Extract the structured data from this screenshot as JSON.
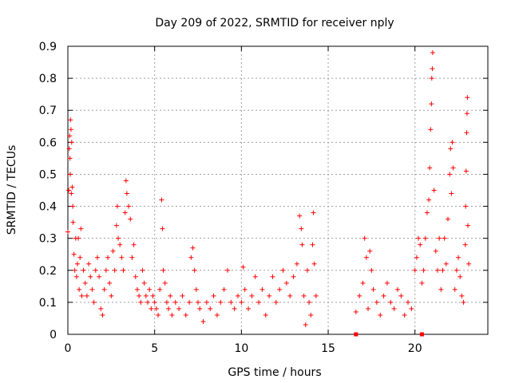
{
  "chart_data": {
    "type": "scatter",
    "title": "Day 209 of 2022, SRMTID for receiver nply",
    "xlabel": "GPS time / hours",
    "ylabel": "SRMTID / TECUs",
    "xlim": [
      0,
      24.2
    ],
    "ylim": [
      0,
      0.9
    ],
    "grid": true,
    "x_ticks": [
      0,
      5,
      10,
      15,
      20
    ],
    "y_ticks": [
      0,
      0.1,
      0.2,
      0.3,
      0.4,
      0.5,
      0.6,
      0.7,
      0.8,
      0.9
    ],
    "marker": "+",
    "marker_color": "#ff0000",
    "series": [
      {
        "name": "SRMTID",
        "points": [
          [
            0.0,
            0.32
          ],
          [
            0.05,
            0.45
          ],
          [
            0.08,
            0.58
          ],
          [
            0.1,
            0.62
          ],
          [
            0.12,
            0.55
          ],
          [
            0.14,
            0.5
          ],
          [
            0.15,
            0.67
          ],
          [
            0.18,
            0.64
          ],
          [
            0.2,
            0.44
          ],
          [
            0.22,
            0.6
          ],
          [
            0.25,
            0.46
          ],
          [
            0.28,
            0.4
          ],
          [
            0.3,
            0.35
          ],
          [
            0.35,
            0.25
          ],
          [
            0.4,
            0.2
          ],
          [
            0.45,
            0.3
          ],
          [
            0.5,
            0.18
          ],
          [
            0.55,
            0.22
          ],
          [
            0.6,
            0.3
          ],
          [
            0.65,
            0.14
          ],
          [
            0.7,
            0.24
          ],
          [
            0.75,
            0.33
          ],
          [
            0.8,
            0.12
          ],
          [
            0.9,
            0.2
          ],
          [
            1.0,
            0.16
          ],
          [
            1.1,
            0.12
          ],
          [
            1.2,
            0.22
          ],
          [
            1.3,
            0.18
          ],
          [
            1.4,
            0.14
          ],
          [
            1.5,
            0.1
          ],
          [
            1.6,
            0.2
          ],
          [
            1.7,
            0.24
          ],
          [
            1.8,
            0.18
          ],
          [
            1.9,
            0.08
          ],
          [
            2.0,
            0.06
          ],
          [
            2.1,
            0.14
          ],
          [
            2.2,
            0.2
          ],
          [
            2.3,
            0.24
          ],
          [
            2.4,
            0.16
          ],
          [
            2.5,
            0.12
          ],
          [
            2.6,
            0.26
          ],
          [
            2.7,
            0.2
          ],
          [
            2.8,
            0.34
          ],
          [
            2.85,
            0.4
          ],
          [
            2.9,
            0.3
          ],
          [
            3.0,
            0.28
          ],
          [
            3.1,
            0.24
          ],
          [
            3.2,
            0.2
          ],
          [
            3.3,
            0.38
          ],
          [
            3.35,
            0.48
          ],
          [
            3.4,
            0.44
          ],
          [
            3.5,
            0.4
          ],
          [
            3.6,
            0.36
          ],
          [
            3.7,
            0.24
          ],
          [
            3.8,
            0.28
          ],
          [
            3.9,
            0.18
          ],
          [
            4.0,
            0.14
          ],
          [
            4.1,
            0.12
          ],
          [
            4.2,
            0.1
          ],
          [
            4.3,
            0.2
          ],
          [
            4.4,
            0.16
          ],
          [
            4.5,
            0.12
          ],
          [
            4.6,
            0.1
          ],
          [
            4.7,
            0.14
          ],
          [
            4.8,
            0.08
          ],
          [
            4.9,
            0.12
          ],
          [
            5.0,
            0.1
          ],
          [
            5.1,
            0.08
          ],
          [
            5.2,
            0.06
          ],
          [
            5.3,
            0.14
          ],
          [
            5.4,
            0.42
          ],
          [
            5.45,
            0.33
          ],
          [
            5.5,
            0.2
          ],
          [
            5.6,
            0.16
          ],
          [
            5.7,
            0.1
          ],
          [
            5.8,
            0.08
          ],
          [
            5.9,
            0.12
          ],
          [
            6.0,
            0.06
          ],
          [
            6.2,
            0.1
          ],
          [
            6.4,
            0.08
          ],
          [
            6.6,
            0.12
          ],
          [
            6.8,
            0.06
          ],
          [
            7.0,
            0.1
          ],
          [
            7.1,
            0.24
          ],
          [
            7.2,
            0.27
          ],
          [
            7.3,
            0.2
          ],
          [
            7.4,
            0.14
          ],
          [
            7.5,
            0.1
          ],
          [
            7.6,
            0.08
          ],
          [
            7.8,
            0.04
          ],
          [
            8.0,
            0.1
          ],
          [
            8.2,
            0.08
          ],
          [
            8.4,
            0.12
          ],
          [
            8.6,
            0.06
          ],
          [
            8.8,
            0.1
          ],
          [
            9.0,
            0.14
          ],
          [
            9.2,
            0.2
          ],
          [
            9.4,
            0.1
          ],
          [
            9.6,
            0.08
          ],
          [
            9.8,
            0.12
          ],
          [
            10.0,
            0.1
          ],
          [
            10.1,
            0.21
          ],
          [
            10.2,
            0.14
          ],
          [
            10.4,
            0.08
          ],
          [
            10.6,
            0.12
          ],
          [
            10.8,
            0.18
          ],
          [
            11.0,
            0.1
          ],
          [
            11.2,
            0.14
          ],
          [
            11.4,
            0.06
          ],
          [
            11.6,
            0.12
          ],
          [
            11.8,
            0.18
          ],
          [
            12.0,
            0.1
          ],
          [
            12.2,
            0.14
          ],
          [
            12.4,
            0.2
          ],
          [
            12.6,
            0.16
          ],
          [
            12.8,
            0.12
          ],
          [
            13.0,
            0.18
          ],
          [
            13.2,
            0.22
          ],
          [
            13.35,
            0.37
          ],
          [
            13.45,
            0.33
          ],
          [
            13.5,
            0.28
          ],
          [
            13.6,
            0.12
          ],
          [
            13.7,
            0.03
          ],
          [
            13.8,
            0.2
          ],
          [
            13.9,
            0.1
          ],
          [
            14.0,
            0.06
          ],
          [
            14.1,
            0.28
          ],
          [
            14.15,
            0.38
          ],
          [
            14.2,
            0.22
          ],
          [
            14.3,
            0.12
          ],
          [
            16.6,
            0.07
          ],
          [
            16.8,
            0.12
          ],
          [
            17.0,
            0.16
          ],
          [
            17.1,
            0.3
          ],
          [
            17.2,
            0.24
          ],
          [
            17.3,
            0.08
          ],
          [
            17.4,
            0.26
          ],
          [
            17.5,
            0.2
          ],
          [
            17.6,
            0.14
          ],
          [
            17.8,
            0.1
          ],
          [
            18.0,
            0.06
          ],
          [
            18.2,
            0.12
          ],
          [
            18.4,
            0.16
          ],
          [
            18.6,
            0.1
          ],
          [
            18.8,
            0.08
          ],
          [
            19.0,
            0.14
          ],
          [
            19.2,
            0.12
          ],
          [
            19.4,
            0.06
          ],
          [
            19.6,
            0.1
          ],
          [
            19.8,
            0.08
          ],
          [
            20.0,
            0.2
          ],
          [
            20.1,
            0.24
          ],
          [
            20.2,
            0.3
          ],
          [
            20.3,
            0.28
          ],
          [
            20.4,
            0.16
          ],
          [
            20.5,
            0.2
          ],
          [
            20.6,
            0.3
          ],
          [
            20.7,
            0.38
          ],
          [
            20.8,
            0.42
          ],
          [
            20.85,
            0.52
          ],
          [
            20.9,
            0.64
          ],
          [
            20.95,
            0.72
          ],
          [
            20.97,
            0.8
          ],
          [
            21.0,
            0.83
          ],
          [
            21.02,
            0.88
          ],
          [
            21.1,
            0.45
          ],
          [
            21.2,
            0.26
          ],
          [
            21.3,
            0.2
          ],
          [
            21.4,
            0.3
          ],
          [
            21.5,
            0.14
          ],
          [
            21.6,
            0.2
          ],
          [
            21.7,
            0.3
          ],
          [
            21.8,
            0.22
          ],
          [
            21.9,
            0.36
          ],
          [
            22.0,
            0.5
          ],
          [
            22.05,
            0.58
          ],
          [
            22.1,
            0.44
          ],
          [
            22.15,
            0.6
          ],
          [
            22.2,
            0.52
          ],
          [
            22.3,
            0.14
          ],
          [
            22.4,
            0.2
          ],
          [
            22.5,
            0.24
          ],
          [
            22.6,
            0.18
          ],
          [
            22.7,
            0.12
          ],
          [
            22.8,
            0.1
          ],
          [
            22.9,
            0.28
          ],
          [
            22.92,
            0.4
          ],
          [
            22.95,
            0.51
          ],
          [
            22.98,
            0.63
          ],
          [
            23.0,
            0.69
          ],
          [
            23.02,
            0.74
          ],
          [
            23.05,
            0.34
          ],
          [
            23.1,
            0.22
          ]
        ]
      }
    ],
    "gap_markers": [
      16.6,
      20.4
    ]
  }
}
